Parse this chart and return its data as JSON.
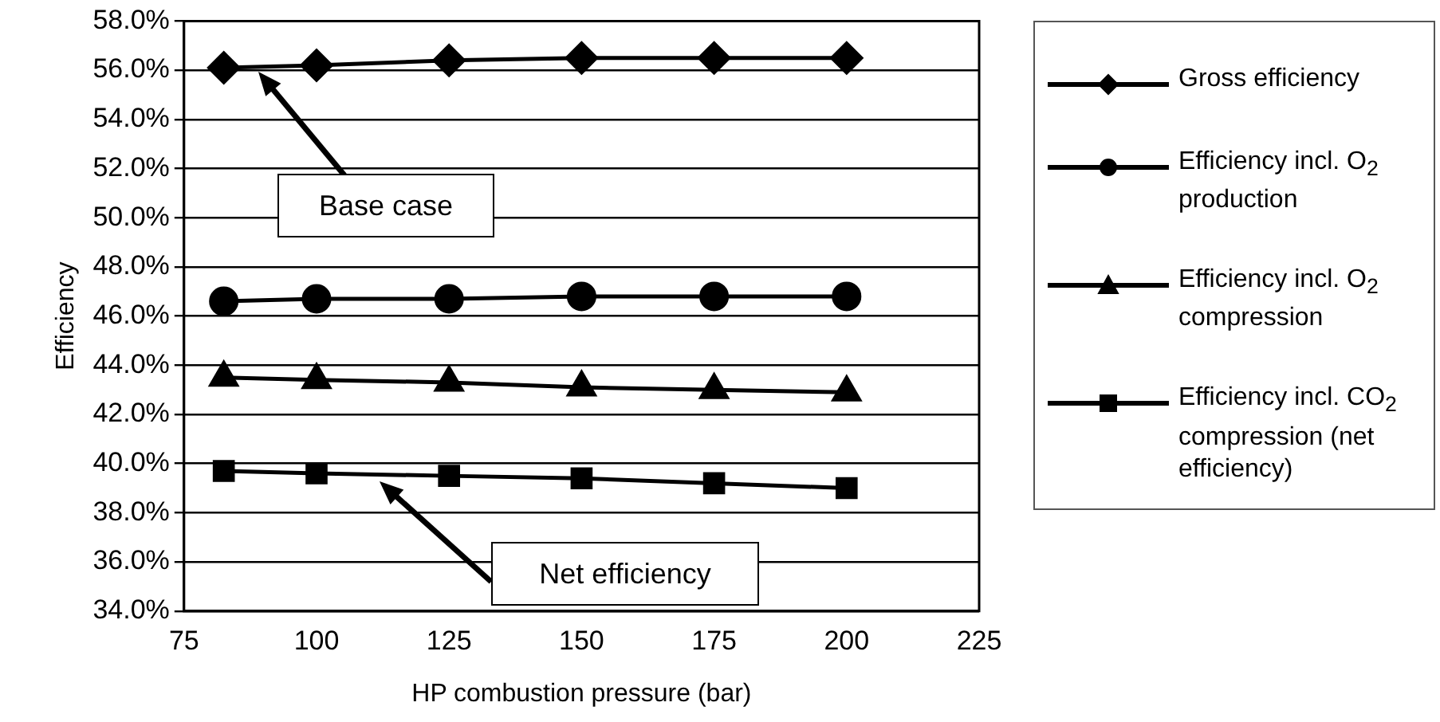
{
  "chart_data": {
    "type": "line",
    "xlabel": "HP combustion pressure (bar)",
    "ylabel": "Efficiency",
    "x": [
      82.5,
      100,
      125,
      150,
      175,
      200
    ],
    "series": [
      {
        "name": "Gross efficiency",
        "color": "#000000",
        "marker": "diamond",
        "values": [
          56.1,
          56.2,
          56.4,
          56.5,
          56.5,
          56.5
        ]
      },
      {
        "name": "Efficiency incl. O$_{2}$ production",
        "color": "#000000",
        "marker": "circle",
        "values": [
          46.6,
          46.7,
          46.7,
          46.8,
          46.8,
          46.8
        ]
      },
      {
        "name": "Efficiency incl. O$_{2}$ compression",
        "color": "#000000",
        "marker": "triangle",
        "values": [
          43.5,
          43.4,
          43.3,
          43.1,
          43.0,
          42.9
        ]
      },
      {
        "name": "Efficiency incl. CO$_{2}$ compression (net efficiency)",
        "color": "#000000",
        "marker": "square",
        "values": [
          39.7,
          39.6,
          39.5,
          39.4,
          39.2,
          39.0
        ]
      }
    ],
    "xlim": [
      75,
      225
    ],
    "xticks": [
      75,
      100,
      125,
      150,
      175,
      200,
      225
    ],
    "ylim": [
      34,
      58
    ],
    "yticks": [
      {
        "value": 34,
        "label": "34.0%"
      },
      {
        "value": 36,
        "label": "36.0%"
      },
      {
        "value": 38,
        "label": "38.0%"
      },
      {
        "value": 40,
        "label": "40.0%"
      },
      {
        "value": 42,
        "label": "42.0%"
      },
      {
        "value": 44,
        "label": "44.0%"
      },
      {
        "value": 46,
        "label": "46.0%"
      },
      {
        "value": 48,
        "label": "48.0%"
      },
      {
        "value": 50,
        "label": "50.0%"
      },
      {
        "value": 52,
        "label": "52.0%"
      },
      {
        "value": 54,
        "label": "54.0%"
      },
      {
        "value": 56,
        "label": "56.0%"
      },
      {
        "value": 58,
        "label": "58.0%"
      }
    ],
    "grid": "y",
    "legend": "right",
    "line_style": "solid",
    "annotations": [
      "Base case",
      "Net efficiency"
    ]
  }
}
